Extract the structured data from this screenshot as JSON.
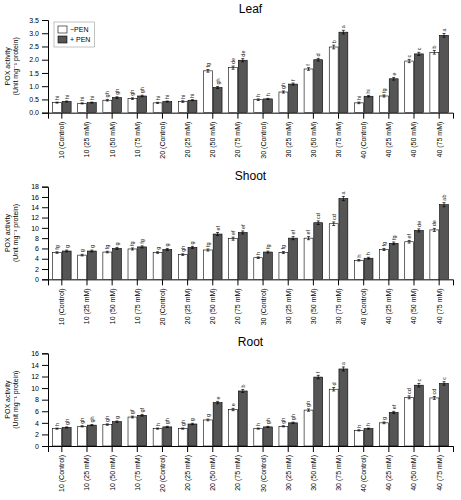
{
  "chart_data": [
    {
      "type": "bar",
      "title": "Leaf",
      "y_label": "POX activity\n(Unit mg⁻¹ protein)",
      "categories": [
        "10 (Control)",
        "10 (25 mM)",
        "10 (50 mM)",
        "10 (75 mM)",
        "20 (Control)",
        "20 (25 mM)",
        "20 (50 mM)",
        "20 (75 mM)",
        "30 (Control)",
        "30 (25 mM)",
        "30 (50 mM)",
        "30 (75 mM)",
        "40 (Control)",
        "40 (25 mM)",
        "40 (50 mM)",
        "40 (75 mM)"
      ],
      "series": [
        {
          "name": "−PEN",
          "color": "white",
          "values": [
            0.38,
            0.35,
            0.47,
            0.53,
            0.37,
            0.42,
            1.58,
            1.7,
            0.49,
            0.78,
            1.65,
            2.48,
            0.37,
            0.63,
            1.95,
            2.28
          ],
          "errors": [
            0.02,
            0.02,
            0.03,
            0.03,
            0.02,
            0.03,
            0.05,
            0.06,
            0.03,
            0.04,
            0.05,
            0.07,
            0.03,
            0.04,
            0.06,
            0.07
          ],
          "annotations": [
            "hi",
            "hi",
            "gh",
            "gh",
            "hi",
            "hi",
            "fg",
            "de",
            "h",
            "gh",
            "f",
            "b",
            "hi",
            "fg",
            "c",
            "b"
          ]
        },
        {
          "name": "+ PEN",
          "color": "#555555",
          "values": [
            0.42,
            0.38,
            0.57,
            0.63,
            0.42,
            0.47,
            0.95,
            1.98,
            0.52,
            1.08,
            2.0,
            3.04,
            0.62,
            1.28,
            2.22,
            2.92
          ],
          "errors": [
            0.02,
            0.02,
            0.03,
            0.03,
            0.02,
            0.02,
            0.04,
            0.06,
            0.02,
            0.04,
            0.05,
            0.07,
            0.03,
            0.05,
            0.06,
            0.07
          ],
          "annotations": [
            "hi",
            "hi",
            "gh",
            "gh",
            "hi",
            "hi",
            "gh",
            "de",
            "h",
            "f",
            "d",
            "a",
            "hi",
            "e",
            "c",
            "a"
          ]
        }
      ],
      "ylim": [
        0,
        3.5
      ],
      "yticks": [
        {
          "value": 0,
          "label": "0.0"
        },
        {
          "value": 0.5,
          "label": "0.5"
        },
        {
          "value": 1.0,
          "label": "1.0"
        },
        {
          "value": 1.5,
          "label": "1.5"
        },
        {
          "value": 2.0,
          "label": "2.0"
        },
        {
          "value": 2.5,
          "label": "2.5"
        },
        {
          "value": 3.0,
          "label": "3.0"
        },
        {
          "value": 3.5,
          "label": "3.5"
        }
      ],
      "grid": false,
      "legend": "upper left"
    },
    {
      "type": "bar",
      "title": "Shoot",
      "y_label": "POX activity\n(Unit mg⁻¹ protein)",
      "categories": [
        "10 (Control)",
        "10 (25 mM)",
        "10 (50 mM)",
        "10 (75 mM)",
        "20 (Control)",
        "20 (25 mM)",
        "20 (50 mM)",
        "20 (75 mM)",
        "30 (Control)",
        "30 (25 mM)",
        "30 (50 mM)",
        "30 (75 mM)",
        "40 (Control)",
        "40 (25 mM)",
        "40 (50 mM)",
        "40 (75 mM)"
      ],
      "series": [
        {
          "name": "−PEN",
          "color": "white",
          "values": [
            5.2,
            4.7,
            5.3,
            5.9,
            5.2,
            4.8,
            5.7,
            7.9,
            4.2,
            5.2,
            8.0,
            10.8,
            3.7,
            5.8,
            7.3,
            9.6
          ],
          "errors": [
            0.15,
            0.15,
            0.15,
            0.2,
            0.15,
            0.15,
            0.2,
            0.3,
            0.15,
            0.2,
            0.3,
            0.35,
            0.15,
            0.2,
            0.25,
            0.3
          ],
          "annotations": [
            "fg",
            "g",
            "fg",
            "fg",
            "g",
            "gh",
            "fg",
            "ef",
            "h",
            "fg",
            "ef",
            "cd",
            "h",
            "fg",
            "ef",
            "de"
          ]
        },
        {
          "name": "+ PEN",
          "color": "#555555",
          "values": [
            5.5,
            5.5,
            6.0,
            6.3,
            5.8,
            6.2,
            8.8,
            9.1,
            5.3,
            8.0,
            11.0,
            15.7,
            4.1,
            7.0,
            9.5,
            14.5
          ],
          "errors": [
            0.18,
            0.18,
            0.2,
            0.2,
            0.2,
            0.2,
            0.3,
            0.3,
            0.18,
            0.3,
            0.35,
            0.4,
            0.18,
            0.25,
            0.3,
            0.4
          ],
          "annotations": [
            "g",
            "g",
            "g",
            "fg",
            "g",
            "g",
            "ef",
            "ef",
            "fg",
            "ef",
            "cd",
            "a",
            "h",
            "fg",
            "de",
            "ab"
          ]
        }
      ],
      "ylim": [
        0,
        18
      ],
      "yticks": [
        0,
        2,
        4,
        6,
        8,
        10,
        12,
        14,
        16,
        18
      ],
      "grid": false
    },
    {
      "type": "bar",
      "title": "Root",
      "y_label": "POX activity\n(Unit mg⁻¹ protein)",
      "categories": [
        "10 (Control)",
        "10 (25 mM)",
        "10 (50 mM)",
        "10 (75 mM)",
        "20 (Control)",
        "20 (25 mM)",
        "20 (50 mM)",
        "20 (75 mM)",
        "30 (Control)",
        "30 (25 mM)",
        "30 (50 mM)",
        "30 (75 mM)",
        "40 (Control)",
        "40 (25 mM)",
        "40 (50 mM)",
        "40 (75 mM)"
      ],
      "series": [
        {
          "name": "−PEN",
          "color": "white",
          "values": [
            3.0,
            3.4,
            3.7,
            5.0,
            3.0,
            3.0,
            4.5,
            6.3,
            3.0,
            3.4,
            6.2,
            9.8,
            2.7,
            4.0,
            8.4,
            8.3
          ],
          "errors": [
            0.1,
            0.1,
            0.12,
            0.15,
            0.1,
            0.1,
            0.15,
            0.2,
            0.1,
            0.1,
            0.2,
            0.3,
            0.1,
            0.15,
            0.25,
            0.25
          ],
          "annotations": [
            "h",
            "gh",
            "gh",
            "gf",
            "h",
            "gh",
            "g",
            "e",
            "h",
            "gh",
            "gh",
            "d",
            "h",
            "g",
            "cd",
            "cd"
          ]
        },
        {
          "name": "+ PEN",
          "color": "#555555",
          "values": [
            3.2,
            3.6,
            4.2,
            5.3,
            3.3,
            3.8,
            7.5,
            9.5,
            3.3,
            4.0,
            11.9,
            13.3,
            3.0,
            5.8,
            10.5,
            10.8
          ],
          "errors": [
            0.1,
            0.1,
            0.13,
            0.15,
            0.1,
            0.12,
            0.2,
            0.25,
            0.1,
            0.12,
            0.3,
            0.35,
            0.1,
            0.18,
            0.3,
            0.3
          ],
          "annotations": [
            "gh",
            "gh",
            "g",
            "gf",
            "gh",
            "g",
            "e",
            "b",
            "gh",
            "gh",
            "f",
            "a",
            "h",
            "ef",
            "c",
            "c"
          ]
        }
      ],
      "ylim": [
        0,
        16
      ],
      "yticks": [
        0,
        2,
        4,
        6,
        8,
        10,
        12,
        14,
        16
      ],
      "grid": false
    }
  ]
}
